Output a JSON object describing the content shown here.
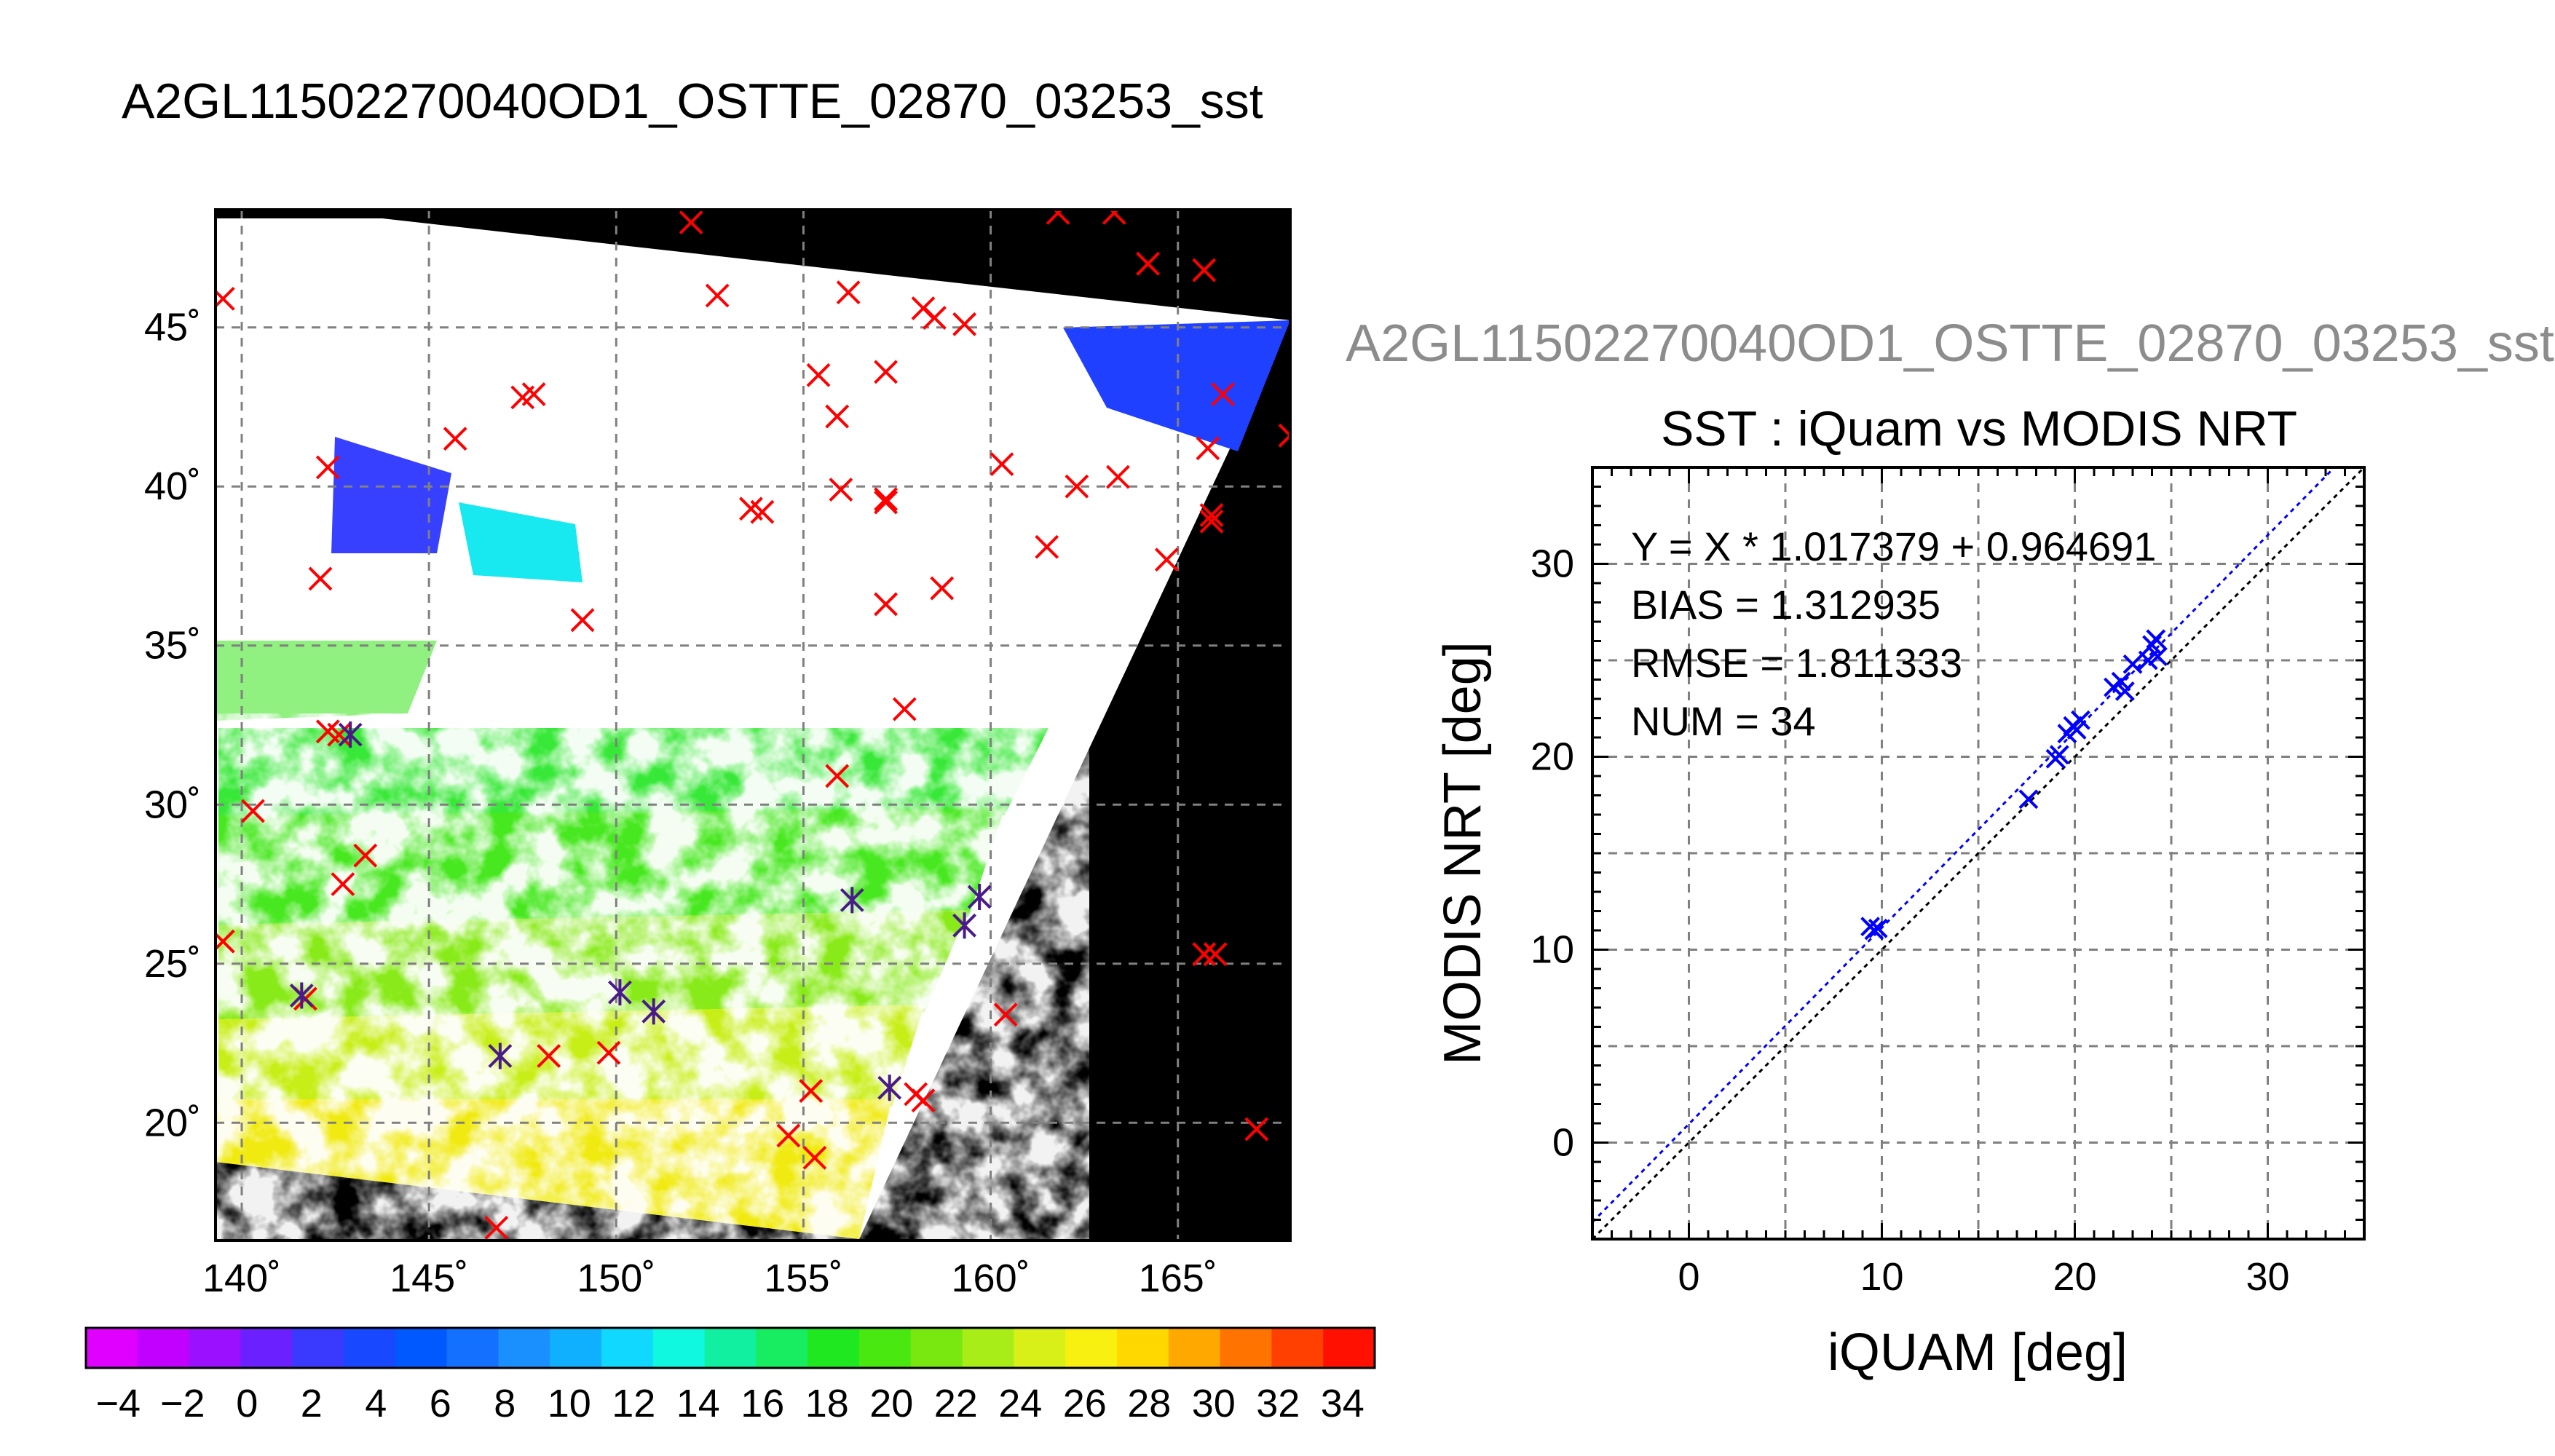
{
  "page_title": "A2GL11502270040OD1_OSTTE_02870_03253_sst",
  "chart_data": [
    {
      "type": "map",
      "title": "",
      "xlim": [
        139.3,
        168
      ],
      "ylim": [
        16.3,
        48.7
      ],
      "x_ticks": [
        140,
        145,
        150,
        155,
        160,
        165
      ],
      "x_tick_labels": [
        "140˚",
        "145˚",
        "150˚",
        "155˚",
        "160˚",
        "165˚"
      ],
      "y_ticks": [
        20,
        25,
        30,
        35,
        40,
        45
      ],
      "y_tick_labels": [
        "20˚",
        "25˚",
        "30˚",
        "35˚",
        "40˚",
        "45˚"
      ],
      "grid": true,
      "colorbar": {
        "min": -5,
        "max": 35,
        "tick_labels": [
          "−4",
          "−2",
          "0",
          "2",
          "4",
          "6",
          "8",
          "10",
          "12",
          "14",
          "16",
          "18",
          "20",
          "22",
          "24",
          "26",
          "28",
          "30",
          "32",
          "34"
        ],
        "colors": [
          "#e000ff",
          "#c200ff",
          "#9a10ff",
          "#6a20ff",
          "#3a3aff",
          "#1848ff",
          "#0058ff",
          "#1470ff",
          "#1a90ff",
          "#10b0ff",
          "#10d8ff",
          "#10f8e0",
          "#10f0a0",
          "#18ec60",
          "#20e820",
          "#48e810",
          "#78e810",
          "#a8ec18",
          "#d8f018",
          "#f8f010",
          "#ffd800",
          "#ffa800",
          "#ff7400",
          "#ff4000",
          "#ff1000"
        ]
      },
      "series": [
        {
          "marker": "×",
          "color": "#ff0000",
          "points": [
            [
              139.5,
              45.9
            ],
            [
              152.0,
              48.3
            ],
            [
              152.7,
              46.0
            ],
            [
              156.2,
              46.1
            ],
            [
              158.2,
              45.6
            ],
            [
              158.5,
              45.3
            ],
            [
              159.3,
              45.1
            ],
            [
              161.8,
              48.6
            ],
            [
              163.3,
              48.6
            ],
            [
              164.2,
              47.0
            ],
            [
              165.7,
              46.8
            ],
            [
              155.4,
              43.5
            ],
            [
              157.2,
              43.6
            ],
            [
              147.5,
              42.8
            ],
            [
              147.8,
              42.9
            ],
            [
              145.7,
              41.5
            ],
            [
              155.9,
              42.2
            ],
            [
              142.3,
              40.6
            ],
            [
              156.0,
              39.9
            ],
            [
              153.6,
              39.3
            ],
            [
              153.9,
              39.2
            ],
            [
              157.2,
              39.5
            ],
            [
              157.2,
              39.6
            ],
            [
              160.3,
              40.7
            ],
            [
              162.3,
              40.0
            ],
            [
              163.4,
              40.3
            ],
            [
              165.8,
              41.2
            ],
            [
              166.2,
              42.9
            ],
            [
              168.0,
              41.6
            ],
            [
              165.9,
              38.9
            ],
            [
              165.9,
              39.1
            ],
            [
              161.5,
              38.1
            ],
            [
              164.7,
              37.7
            ],
            [
              142.1,
              37.1
            ],
            [
              149.1,
              35.8
            ],
            [
              157.2,
              36.3
            ],
            [
              158.7,
              36.8
            ],
            [
              142.3,
              32.3
            ],
            [
              142.6,
              32.2
            ],
            [
              157.7,
              33.0
            ],
            [
              155.9,
              30.9
            ],
            [
              140.3,
              29.8
            ],
            [
              143.3,
              28.4
            ],
            [
              142.7,
              27.5
            ],
            [
              139.5,
              25.7
            ],
            [
              165.7,
              25.3
            ],
            [
              166.0,
              25.3
            ],
            [
              160.4,
              23.4
            ],
            [
              141.7,
              23.9
            ],
            [
              148.2,
              22.1
            ],
            [
              149.8,
              22.2
            ],
            [
              155.2,
              21.0
            ],
            [
              158.0,
              20.9
            ],
            [
              158.2,
              20.7
            ],
            [
              154.6,
              19.6
            ],
            [
              155.3,
              18.9
            ],
            [
              146.8,
              16.7
            ],
            [
              167.1,
              19.8
            ]
          ]
        },
        {
          "marker": "✳",
          "color": "#4a1a8a",
          "points": [
            [
              142.9,
              32.2
            ],
            [
              156.3,
              27.0
            ],
            [
              159.3,
              26.2
            ],
            [
              159.7,
              27.1
            ],
            [
              141.6,
              24.0
            ],
            [
              146.9,
              22.1
            ],
            [
              150.1,
              24.1
            ],
            [
              151.0,
              23.5
            ],
            [
              157.3,
              21.1
            ]
          ]
        }
      ]
    },
    {
      "type": "scatter",
      "title": "SST : iQuam vs MODIS NRT",
      "subtitle": "A2GL11502270040OD1_OSTTE_02870_03253_sst",
      "xlabel": "iQUAM [deg]",
      "ylabel": "MODIS NRT [deg]",
      "xlim": [
        -5,
        35
      ],
      "ylim": [
        -5,
        35
      ],
      "x_ticks": [
        0,
        10,
        20,
        30
      ],
      "y_ticks": [
        0,
        10,
        20,
        30
      ],
      "grid": true,
      "annotations": [
        "Y = X * 1.017379 + 0.964691",
        "BIAS = 1.312935",
        "RMSE = 1.811333",
        "NUM = 34"
      ],
      "fit": {
        "slope": 1.017379,
        "intercept": 0.964691,
        "color": "#0000ff"
      },
      "identity_color": "#000000",
      "series": [
        {
          "marker": "×",
          "color": "#0000ff",
          "points": [
            [
              9.4,
              11.2
            ],
            [
              9.6,
              11.0
            ],
            [
              9.8,
              11.1
            ],
            [
              17.6,
              17.8
            ],
            [
              19.0,
              19.9
            ],
            [
              19.2,
              20.1
            ],
            [
              19.6,
              21.2
            ],
            [
              19.9,
              21.6
            ],
            [
              20.3,
              21.9
            ],
            [
              20.1,
              21.4
            ],
            [
              22.0,
              23.6
            ],
            [
              22.4,
              23.9
            ],
            [
              22.6,
              23.4
            ],
            [
              23.0,
              24.8
            ],
            [
              23.8,
              25.0
            ],
            [
              24.0,
              25.8
            ],
            [
              24.2,
              26.1
            ],
            [
              24.3,
              25.2
            ]
          ]
        }
      ]
    }
  ]
}
